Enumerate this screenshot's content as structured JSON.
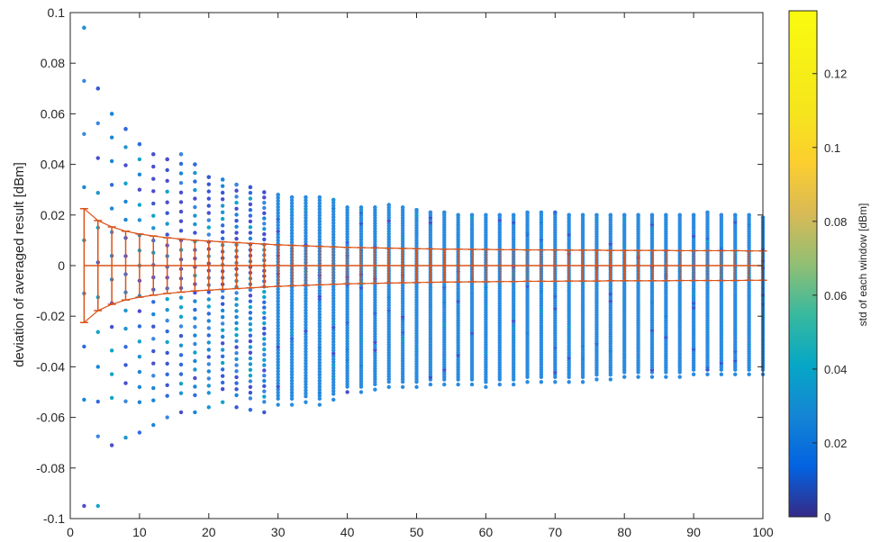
{
  "chart_data": {
    "type": "scatter",
    "title": "",
    "xlabel": "",
    "ylabel": "deviation of averaged result [dBm]",
    "xlim": [
      0,
      100
    ],
    "ylim": [
      -0.1,
      0.1
    ],
    "x_ticks": [
      "0",
      "10",
      "20",
      "30",
      "40",
      "50",
      "60",
      "70",
      "80",
      "90",
      "100"
    ],
    "y_ticks": [
      "-0.1",
      "-0.08",
      "-0.06",
      "-0.04",
      "-0.02",
      "0",
      "0.02",
      "0.04",
      "0.06",
      "0.08",
      "0.1"
    ],
    "grid": false,
    "colorbar": {
      "label": "std of each window [dBm]",
      "range": [
        0,
        0.137
      ],
      "ticks": [
        "0",
        "0.02",
        "0.04",
        "0.06",
        "0.08",
        "0.1",
        "0.12"
      ],
      "colormap": "parula"
    },
    "scatter_envelope": {
      "x": [
        2,
        4,
        6,
        8,
        10,
        12,
        14,
        16,
        18,
        20,
        22,
        24,
        26,
        28,
        30,
        32,
        34,
        36,
        38,
        40,
        42,
        44,
        46,
        48,
        50,
        52,
        54,
        56,
        58,
        60,
        62,
        64,
        66,
        68,
        70,
        72,
        74,
        76,
        78,
        80,
        82,
        84,
        86,
        88,
        90,
        92,
        94,
        96,
        98,
        100
      ],
      "y_max": [
        0.094,
        0.07,
        0.06,
        0.054,
        0.048,
        0.044,
        0.042,
        0.044,
        0.04,
        0.035,
        0.034,
        0.032,
        0.031,
        0.029,
        0.028,
        0.027,
        0.027,
        0.027,
        0.026,
        0.023,
        0.023,
        0.023,
        0.024,
        0.023,
        0.022,
        0.021,
        0.021,
        0.02,
        0.02,
        0.02,
        0.02,
        0.02,
        0.021,
        0.021,
        0.021,
        0.02,
        0.02,
        0.02,
        0.02,
        0.02,
        0.02,
        0.02,
        0.02,
        0.02,
        0.02,
        0.021,
        0.02,
        0.02,
        0.02,
        0.019
      ],
      "y_min": [
        -0.095,
        -0.095,
        -0.071,
        -0.068,
        -0.066,
        -0.063,
        -0.06,
        -0.058,
        -0.058,
        -0.056,
        -0.054,
        -0.056,
        -0.057,
        -0.058,
        -0.055,
        -0.055,
        -0.054,
        -0.055,
        -0.053,
        -0.05,
        -0.05,
        -0.049,
        -0.048,
        -0.048,
        -0.048,
        -0.047,
        -0.047,
        -0.047,
        -0.047,
        -0.048,
        -0.047,
        -0.047,
        -0.046,
        -0.046,
        -0.046,
        -0.046,
        -0.046,
        -0.045,
        -0.045,
        -0.044,
        -0.044,
        -0.044,
        -0.044,
        -0.044,
        -0.043,
        -0.043,
        -0.043,
        -0.043,
        -0.043,
        -0.043
      ]
    },
    "errorbar": {
      "color": "#d95319",
      "x": [
        2,
        4,
        6,
        8,
        10,
        12,
        14,
        16,
        18,
        20,
        22,
        24,
        26,
        28,
        30,
        32,
        34,
        36,
        38,
        40,
        42,
        44,
        46,
        48,
        50,
        52,
        54,
        56,
        58,
        60,
        62,
        64,
        66,
        68,
        70,
        72,
        74,
        76,
        78,
        80,
        82,
        84,
        86,
        88,
        90,
        92,
        94,
        96,
        98,
        100
      ],
      "mean": [
        0,
        0,
        0,
        0,
        0,
        0,
        0,
        0,
        0,
        0,
        0,
        0,
        0,
        0,
        0,
        0,
        0,
        0,
        0,
        0,
        0,
        0,
        0,
        0,
        0,
        0,
        0,
        0,
        0,
        0,
        0,
        0,
        0,
        0,
        0,
        0,
        0,
        0,
        0,
        0,
        0,
        0,
        0,
        0,
        0,
        0,
        0,
        0,
        0,
        0
      ],
      "std": [
        0.0225,
        0.0178,
        0.0153,
        0.0136,
        0.0125,
        0.0117,
        0.011,
        0.0105,
        0.01,
        0.0097,
        0.0094,
        0.0091,
        0.0088,
        0.0085,
        0.0082,
        0.008,
        0.0078,
        0.0076,
        0.0074,
        0.0072,
        0.0071,
        0.007,
        0.0069,
        0.0068,
        0.0067,
        0.0066,
        0.0065,
        0.0065,
        0.0064,
        0.0064,
        0.0063,
        0.0063,
        0.0062,
        0.0062,
        0.0062,
        0.0061,
        0.0061,
        0.0061,
        0.006,
        0.006,
        0.006,
        0.006,
        0.006,
        0.0059,
        0.0059,
        0.0059,
        0.0059,
        0.0059,
        0.0058,
        0.0058
      ]
    }
  }
}
